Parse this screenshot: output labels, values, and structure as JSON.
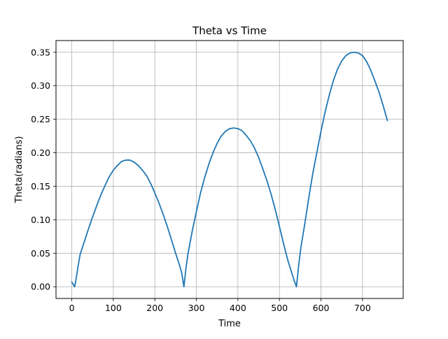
{
  "chart_data": {
    "type": "line",
    "title": "Theta vs Time",
    "xlabel": "Time",
    "ylabel": "Theta(radians)",
    "xlim": [
      -38,
      798
    ],
    "ylim": [
      -0.0175,
      0.3675
    ],
    "xticks": [
      0,
      100,
      200,
      300,
      400,
      500,
      600,
      700
    ],
    "yticks": [
      0.0,
      0.05,
      0.1,
      0.15,
      0.2,
      0.25,
      0.3,
      0.35
    ],
    "ytick_labels": [
      "0.00",
      "0.05",
      "0.10",
      "0.15",
      "0.20",
      "0.25",
      "0.30",
      "0.35"
    ],
    "grid": true,
    "series": [
      {
        "color": "#1f77b4",
        "x": [
          0,
          7,
          10,
          15,
          20,
          30,
          40,
          50,
          60,
          70,
          80,
          90,
          100,
          110,
          120,
          130,
          140,
          150,
          160,
          170,
          180,
          190,
          200,
          210,
          220,
          230,
          240,
          250,
          260,
          265,
          270,
          275,
          280,
          290,
          300,
          310,
          320,
          330,
          340,
          350,
          360,
          370,
          380,
          390,
          400,
          410,
          420,
          430,
          440,
          450,
          460,
          470,
          480,
          490,
          500,
          510,
          520,
          530,
          535,
          541,
          546,
          552,
          560,
          570,
          580,
          590,
          600,
          610,
          620,
          630,
          640,
          650,
          660,
          670,
          680,
          690,
          700,
          710,
          720,
          730,
          740,
          750,
          760
        ],
        "y": [
          0.007,
          0.0,
          0.01,
          0.03,
          0.048,
          0.067,
          0.086,
          0.104,
          0.121,
          0.137,
          0.151,
          0.164,
          0.174,
          0.181,
          0.187,
          0.189,
          0.189,
          0.186,
          0.181,
          0.174,
          0.166,
          0.154,
          0.14,
          0.125,
          0.108,
          0.09,
          0.07,
          0.05,
          0.031,
          0.02,
          0.0,
          0.028,
          0.05,
          0.083,
          0.112,
          0.14,
          0.163,
          0.183,
          0.2,
          0.214,
          0.225,
          0.232,
          0.236,
          0.237,
          0.236,
          0.233,
          0.226,
          0.218,
          0.207,
          0.193,
          0.176,
          0.158,
          0.138,
          0.115,
          0.09,
          0.064,
          0.04,
          0.02,
          0.01,
          0.0,
          0.03,
          0.06,
          0.09,
          0.13,
          0.168,
          0.2,
          0.232,
          0.261,
          0.286,
          0.308,
          0.325,
          0.337,
          0.345,
          0.349,
          0.35,
          0.349,
          0.345,
          0.336,
          0.323,
          0.307,
          0.29,
          0.27,
          0.248
        ]
      }
    ]
  }
}
